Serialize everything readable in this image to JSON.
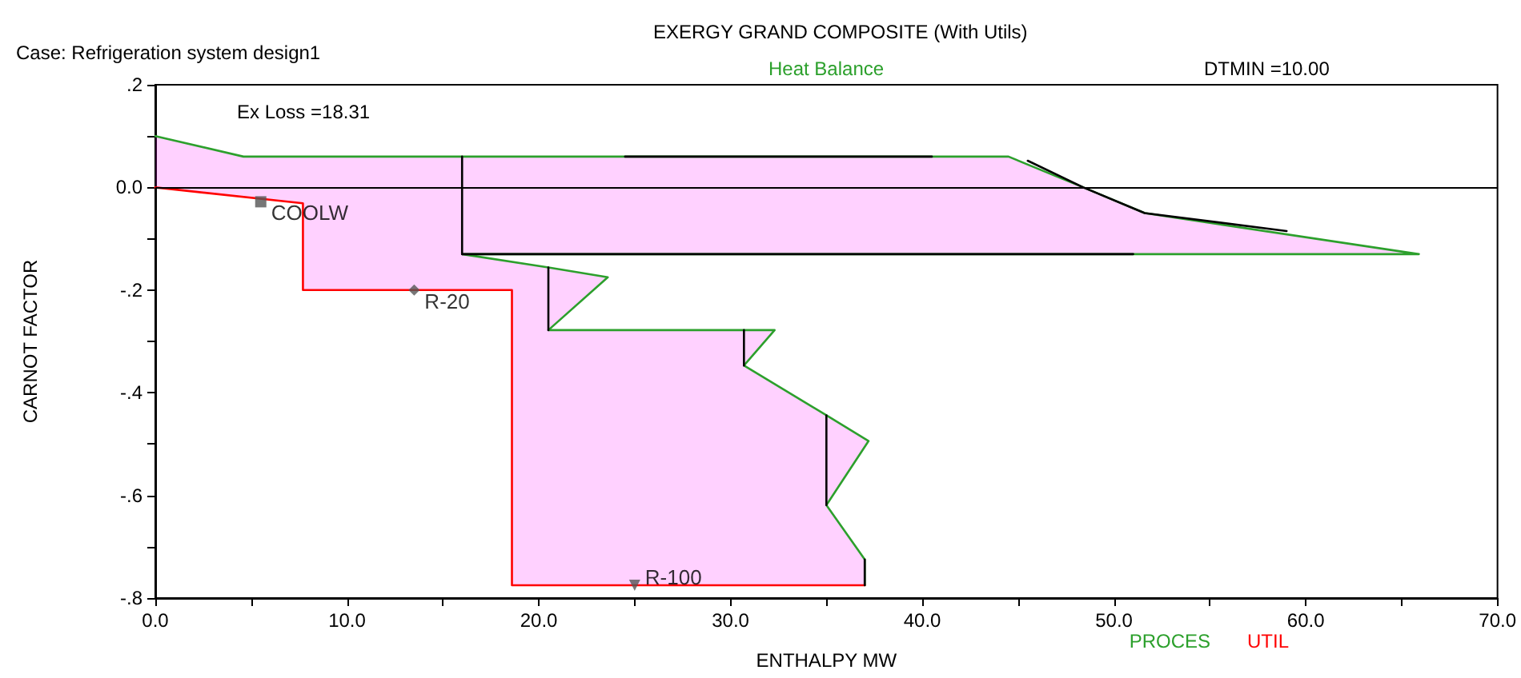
{
  "chart_data": {
    "type": "line",
    "title": "EXERGY GRAND COMPOSITE (With Utils)",
    "subtitle": "Case: Refrigeration system design1",
    "xlabel": "ENTHALPY MW",
    "ylabel": "CARNOT FACTOR",
    "annotations": [
      "Heat Balance",
      "DTMIN =10.00",
      "Ex Loss =18.31"
    ],
    "xlim": [
      0,
      70
    ],
    "ylim": [
      -0.8,
      0.2
    ],
    "xticks": [
      {
        "value": 0,
        "label": "0.0"
      },
      {
        "value": 5,
        "label": null
      },
      {
        "value": 10,
        "label": "10.0"
      },
      {
        "value": 15,
        "label": null
      },
      {
        "value": 20,
        "label": "20.0"
      },
      {
        "value": 25,
        "label": null
      },
      {
        "value": 30,
        "label": "30.0"
      },
      {
        "value": 35,
        "label": null
      },
      {
        "value": 40,
        "label": "40.0"
      },
      {
        "value": 45,
        "label": null
      },
      {
        "value": 50,
        "label": "50.0"
      },
      {
        "value": 55,
        "label": null
      },
      {
        "value": 60,
        "label": "60.0"
      },
      {
        "value": 65,
        "label": null
      },
      {
        "value": 70,
        "label": "70.0"
      }
    ],
    "yticks": [
      {
        "value": -0.8,
        "label": "-.8"
      },
      {
        "value": -0.7,
        "label": null
      },
      {
        "value": -0.6,
        "label": "-.6"
      },
      {
        "value": -0.5,
        "label": null
      },
      {
        "value": -0.4,
        "label": "-.4"
      },
      {
        "value": -0.3,
        "label": null
      },
      {
        "value": -0.2,
        "label": "-.2"
      },
      {
        "value": -0.1,
        "label": null
      },
      {
        "value": 0,
        "label": "0.0"
      },
      {
        "value": 0.1,
        "label": null
      },
      {
        "value": 0.2,
        "label": ".2"
      }
    ],
    "grid": false,
    "legend": "bottom right",
    "marker": "none",
    "line_style": "solid",
    "ref_lines": [
      {
        "axis": "y",
        "value": 0,
        "color": "#000000"
      }
    ],
    "series": [
      {
        "name": "PROCES",
        "color": "#2ca02c",
        "x": [
          0,
          4.6,
          44.5,
          48.4,
          51.6,
          65.9,
          16,
          20.5,
          23.6,
          20.5,
          32.3,
          30.7,
          35,
          37.2,
          35,
          37,
          37
        ],
        "values": [
          0.1,
          0.06,
          0.06,
          0,
          -0.05,
          -0.13,
          -0.13,
          -0.156,
          -0.175,
          -0.278,
          -0.278,
          -0.347,
          -0.444,
          -0.494,
          -0.619,
          -0.725,
          -0.775
        ]
      },
      {
        "name": "UTIL",
        "color": "#ff0000",
        "x": [
          0,
          7.7,
          7.7,
          18.6,
          18.6,
          37
        ],
        "values": [
          0,
          -0.031,
          -0.2,
          -0.2,
          -0.775,
          -0.775
        ]
      },
      {
        "color": "#000000",
        "x": [
          16,
          16
        ],
        "values": [
          0.06,
          -0.13
        ]
      },
      {
        "color": "#000000",
        "x": [
          24.5,
          40.5
        ],
        "values": [
          0.06,
          0.06
        ]
      },
      {
        "color": "#000000",
        "x": [
          16,
          51
        ],
        "values": [
          -0.13,
          -0.13
        ]
      },
      {
        "color": "#000000",
        "x": [
          45.5,
          48.4,
          51.6,
          59
        ],
        "values": [
          0.052,
          0,
          -0.05,
          -0.085
        ]
      },
      {
        "color": "#000000",
        "x": [
          20.5,
          20.5
        ],
        "values": [
          -0.156,
          -0.278
        ]
      },
      {
        "color": "#000000",
        "x": [
          30.7,
          30.7
        ],
        "values": [
          -0.278,
          -0.347
        ]
      },
      {
        "color": "#000000",
        "x": [
          35,
          35
        ],
        "values": [
          -0.444,
          -0.619
        ]
      },
      {
        "color": "#000000",
        "x": [
          37,
          37
        ],
        "values": [
          -0.725,
          -0.775
        ]
      },
      {
        "type": "scatter",
        "name": "COOLW",
        "marker": "square",
        "color": "#555555",
        "x": [
          5.5
        ],
        "values": [
          -0.028
        ]
      },
      {
        "type": "scatter",
        "name": "R-20",
        "marker": "diamond",
        "color": "#555555",
        "x": [
          13.5
        ],
        "values": [
          -0.2
        ]
      },
      {
        "type": "scatter",
        "name": "R-100",
        "marker": "triangle",
        "color": "#555555",
        "x": [
          25
        ],
        "values": [
          -0.775
        ]
      }
    ]
  }
}
